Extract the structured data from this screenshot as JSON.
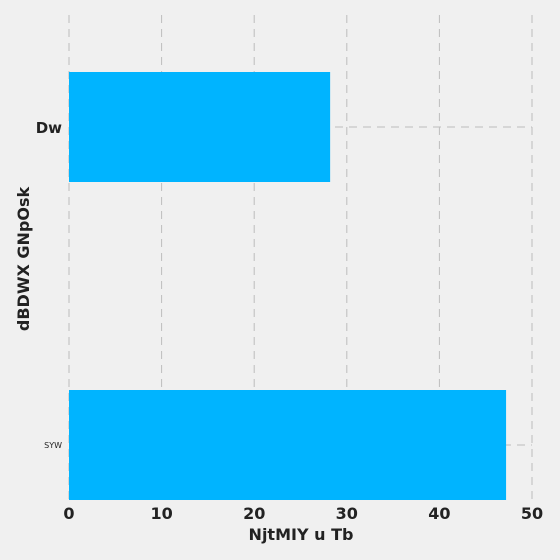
{
  "chart_data": {
    "type": "bar",
    "orientation": "horizontal",
    "categories": [
      "Dw",
      "SYW"
    ],
    "values": [
      28.2,
      47.2
    ],
    "xlabel": "NjtMIY u Tb",
    "ylabel": "dBDWX GNpOsk",
    "xlim": [
      0,
      50
    ],
    "xticks": [
      "0",
      "10",
      "20",
      "30",
      "40",
      "50"
    ],
    "grid": true,
    "colors": {
      "bar": "#00b4ff",
      "background": "#f0f0f0",
      "grid": "#bdbdbd"
    }
  }
}
